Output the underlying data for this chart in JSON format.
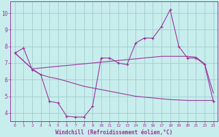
{
  "xlabel": "Windchill (Refroidissement éolien,°C)",
  "background_color": "#c8eded",
  "grid_color": "#a0cccc",
  "line_color": "#993399",
  "x_values": [
    0,
    1,
    2,
    3,
    4,
    5,
    6,
    7,
    8,
    9,
    10,
    11,
    12,
    13,
    14,
    15,
    16,
    17,
    18,
    19,
    20,
    21,
    22,
    23
  ],
  "line1_y": [
    7.6,
    7.9,
    6.6,
    6.3,
    4.7,
    4.6,
    3.8,
    3.75,
    3.75,
    4.4,
    7.3,
    7.3,
    7.0,
    6.9,
    8.2,
    8.5,
    8.5,
    9.2,
    10.2,
    8.0,
    7.3,
    7.3,
    6.9,
    4.7
  ],
  "line2_x": [
    0,
    2,
    10,
    11,
    12,
    13,
    14,
    15,
    16,
    17,
    18,
    19,
    20,
    21,
    22,
    23
  ],
  "line2_y": [
    7.6,
    6.65,
    7.05,
    7.1,
    7.15,
    7.2,
    7.25,
    7.3,
    7.35,
    7.4,
    7.4,
    7.4,
    7.4,
    7.35,
    6.95,
    5.2
  ],
  "line3_x": [
    0,
    2,
    3,
    4,
    5,
    6,
    7,
    8,
    9,
    10,
    11,
    12,
    13,
    14,
    15,
    16,
    17,
    18,
    19,
    20,
    21,
    22,
    23
  ],
  "line3_y": [
    7.6,
    6.65,
    6.3,
    6.15,
    6.05,
    5.9,
    5.75,
    5.6,
    5.5,
    5.4,
    5.3,
    5.2,
    5.1,
    5.0,
    4.95,
    4.9,
    4.85,
    4.8,
    4.78,
    4.75,
    4.75,
    4.75,
    4.75
  ],
  "ylim": [
    3.5,
    10.7
  ],
  "xlim_min": -0.5,
  "xlim_max": 23.5,
  "yticks": [
    4,
    5,
    6,
    7,
    8,
    9,
    10
  ]
}
